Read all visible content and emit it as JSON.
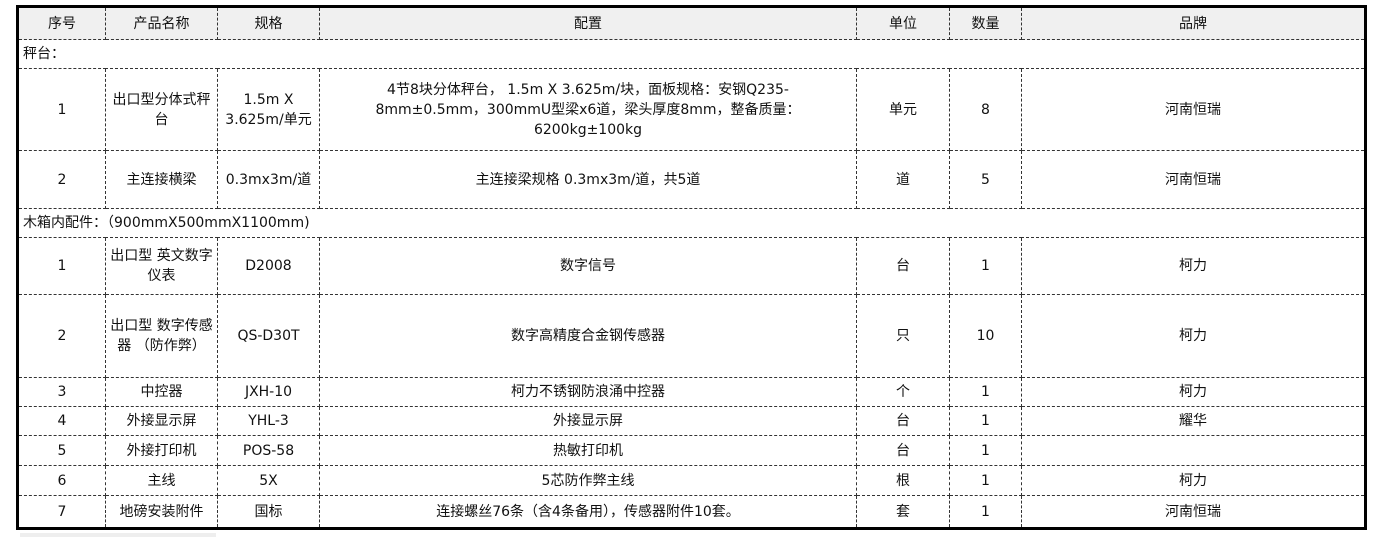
{
  "headers": [
    "序号",
    "产品名称",
    "规格",
    "配置",
    "单位",
    "数量",
    "品牌"
  ],
  "sections": [
    {
      "title": "秤台：",
      "rows": [
        {
          "no": "1",
          "name": "出口型分体式秤台",
          "spec": "1.5m X 3.625m/单元",
          "config": "4节8块分体秤台， 1.5m X 3.625m/块，面板规格：安钢Q235-8mm±0.5mm，300mmU型梁x6道，梁头厚度8mm，整备质量：6200kg±100kg",
          "unit": "单元",
          "qty": "8",
          "brand": "河南恒瑞"
        },
        {
          "no": "2",
          "name": "主连接横梁",
          "spec": "0.3mx3m/道",
          "config": "主连接梁规格 0.3mx3m/道，共5道",
          "unit": "道",
          "qty": "5",
          "brand": "河南恒瑞"
        }
      ]
    },
    {
      "title": "木箱内配件：（900mmX500mmX1100mm)",
      "rows": [
        {
          "no": "1",
          "name": "出口型 英文数字仪表",
          "spec": "D2008",
          "config": "数字信号",
          "unit": "台",
          "qty": "1",
          "brand": "柯力"
        },
        {
          "no": "2",
          "name": "出口型 数字传感器 （防作弊）",
          "spec": "QS-D30T",
          "config": "数字高精度合金钢传感器",
          "unit": "只",
          "qty": "10",
          "brand": "柯力"
        },
        {
          "no": "3",
          "name": "中控器",
          "spec": "JXH-10",
          "config": "柯力不锈钢防浪涌中控器",
          "unit": "个",
          "qty": "1",
          "brand": "柯力"
        },
        {
          "no": "4",
          "name": "外接显示屏",
          "spec": "YHL-3",
          "config": "外接显示屏",
          "unit": "台",
          "qty": "1",
          "brand": "耀华"
        },
        {
          "no": "5",
          "name": "外接打印机",
          "spec": "POS-58",
          "config": "热敏打印机",
          "unit": "台",
          "qty": "1",
          "brand": ""
        },
        {
          "no": "6",
          "name": "主线",
          "spec": "5X",
          "config": "5芯防作弊主线",
          "unit": "根",
          "qty": "1",
          "brand": "柯力"
        },
        {
          "no": "7",
          "name": "地磅安装附件",
          "spec": "国标",
          "config": "连接螺丝76条（含4条备用），传感器附件10套。",
          "unit": "套",
          "qty": "1",
          "brand": "河南恒瑞"
        }
      ]
    }
  ]
}
